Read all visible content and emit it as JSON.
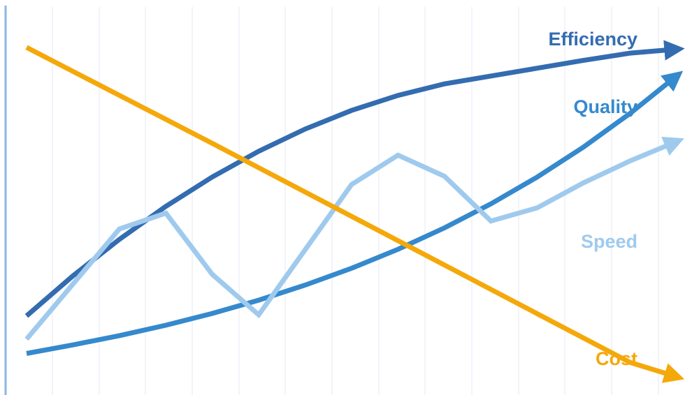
{
  "chart_data": {
    "type": "line",
    "title": "",
    "xlabel": "",
    "ylabel": "",
    "grid": "vertical",
    "legend": "inline-right",
    "x": [
      0,
      1,
      2,
      3,
      4,
      5,
      6,
      7,
      8,
      9,
      10,
      11,
      12,
      13,
      14
    ],
    "xlim": [
      0,
      14
    ],
    "ylim": [
      0,
      100
    ],
    "colors": {
      "grid": "#e4eaf5",
      "axis": "#8ab7e6"
    },
    "series": [
      {
        "name": "Efficiency",
        "color": "#336cb0",
        "values": [
          18,
          29.2,
          39.4,
          48.6,
          56.8,
          64,
          70.2,
          75.4,
          79.6,
          82.8,
          85,
          87.2,
          89.4,
          91.4,
          92.5
        ]
      },
      {
        "name": "Quality",
        "color": "#3589cd",
        "values": [
          7.5,
          9.9,
          12.5,
          15.4,
          18.7,
          22.4,
          26.6,
          31.3,
          36.6,
          42.6,
          49.3,
          56.8,
          65.2,
          74.6,
          85
        ]
      },
      {
        "name": "Speed",
        "color": "#9fcaee",
        "values": [
          11.5,
          26.9,
          42.3,
          46.7,
          29.6,
          18.3,
          36.5,
          54.7,
          62.9,
          57,
          44.5,
          48.2,
          55.2,
          61.3,
          66.7
        ]
      },
      {
        "name": "Cost",
        "color": "#f5a80a",
        "values": [
          93,
          86.3,
          79.6,
          72.9,
          66.2,
          59.4,
          52.6,
          45.8,
          39,
          32.2,
          25.4,
          18.6,
          11.8,
          5,
          1
        ]
      }
    ]
  }
}
